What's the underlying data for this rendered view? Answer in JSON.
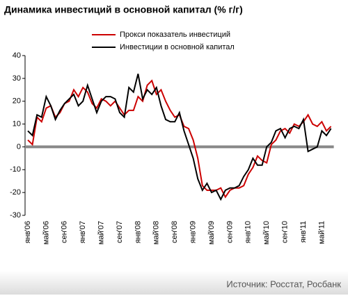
{
  "chart_data": {
    "type": "line",
    "title": "Динамика инвестиций в основной капитал (% г/г)",
    "source": "Источник: Росстат, Росбанк",
    "categories": [
      "янв'06",
      null,
      null,
      null,
      "май'06",
      null,
      null,
      null,
      "сен'06",
      null,
      null,
      null,
      "янв'07",
      null,
      null,
      null,
      "май'07",
      null,
      null,
      null,
      "сен'07",
      null,
      null,
      null,
      "янв'08",
      null,
      null,
      null,
      "май'08",
      null,
      null,
      null,
      "сен'08",
      null,
      null,
      null,
      "янв'09",
      null,
      null,
      null,
      "май'09",
      null,
      null,
      null,
      "сен'09",
      null,
      null,
      null,
      "янв'10",
      null,
      null,
      null,
      "май'10",
      null,
      null,
      null,
      "сен'10",
      null,
      null,
      null,
      "янв'11",
      null,
      null,
      null,
      "май'11",
      null,
      null
    ],
    "series": [
      {
        "name": "Прокси показатель инвестиций",
        "color": "#cc0000",
        "values": [
          3,
          1,
          13,
          11,
          17,
          18,
          13,
          15,
          19,
          20,
          25,
          22,
          26,
          24,
          19,
          17,
          21,
          20,
          18,
          20,
          17,
          14,
          16,
          16,
          22,
          20,
          27,
          29,
          23,
          25,
          20,
          16,
          13,
          14,
          9,
          8,
          3,
          -5,
          -17,
          -19,
          -19,
          -19,
          -18,
          -22,
          -19,
          -18,
          -18,
          -17,
          -12,
          -9,
          -4,
          -6,
          -7,
          1,
          3,
          7,
          8,
          6,
          10,
          9,
          11,
          14,
          10,
          9,
          11,
          7,
          9
        ]
      },
      {
        "name": "Инвестиции в основной капитал",
        "color": "#000000",
        "values": [
          7,
          5,
          14,
          13,
          22,
          18,
          12,
          16,
          19,
          21,
          23,
          18,
          20,
          27,
          21,
          15,
          20,
          22,
          22,
          21,
          15,
          13,
          26,
          24,
          32,
          21,
          25,
          23,
          26,
          18,
          12,
          11,
          11,
          15,
          7,
          1,
          -5,
          -14,
          -19,
          -16,
          -20,
          -19,
          -23,
          -19,
          -18,
          -18,
          -17,
          -13,
          -10,
          -5,
          -8,
          -8,
          0,
          2,
          7,
          8,
          4,
          8,
          9,
          8,
          12,
          -2,
          -1,
          0,
          7,
          5,
          8
        ]
      }
    ],
    "ylim": [
      -30,
      40
    ],
    "yticks": [
      -30,
      -20,
      -10,
      0,
      10,
      20,
      30,
      40
    ],
    "grid": false
  }
}
